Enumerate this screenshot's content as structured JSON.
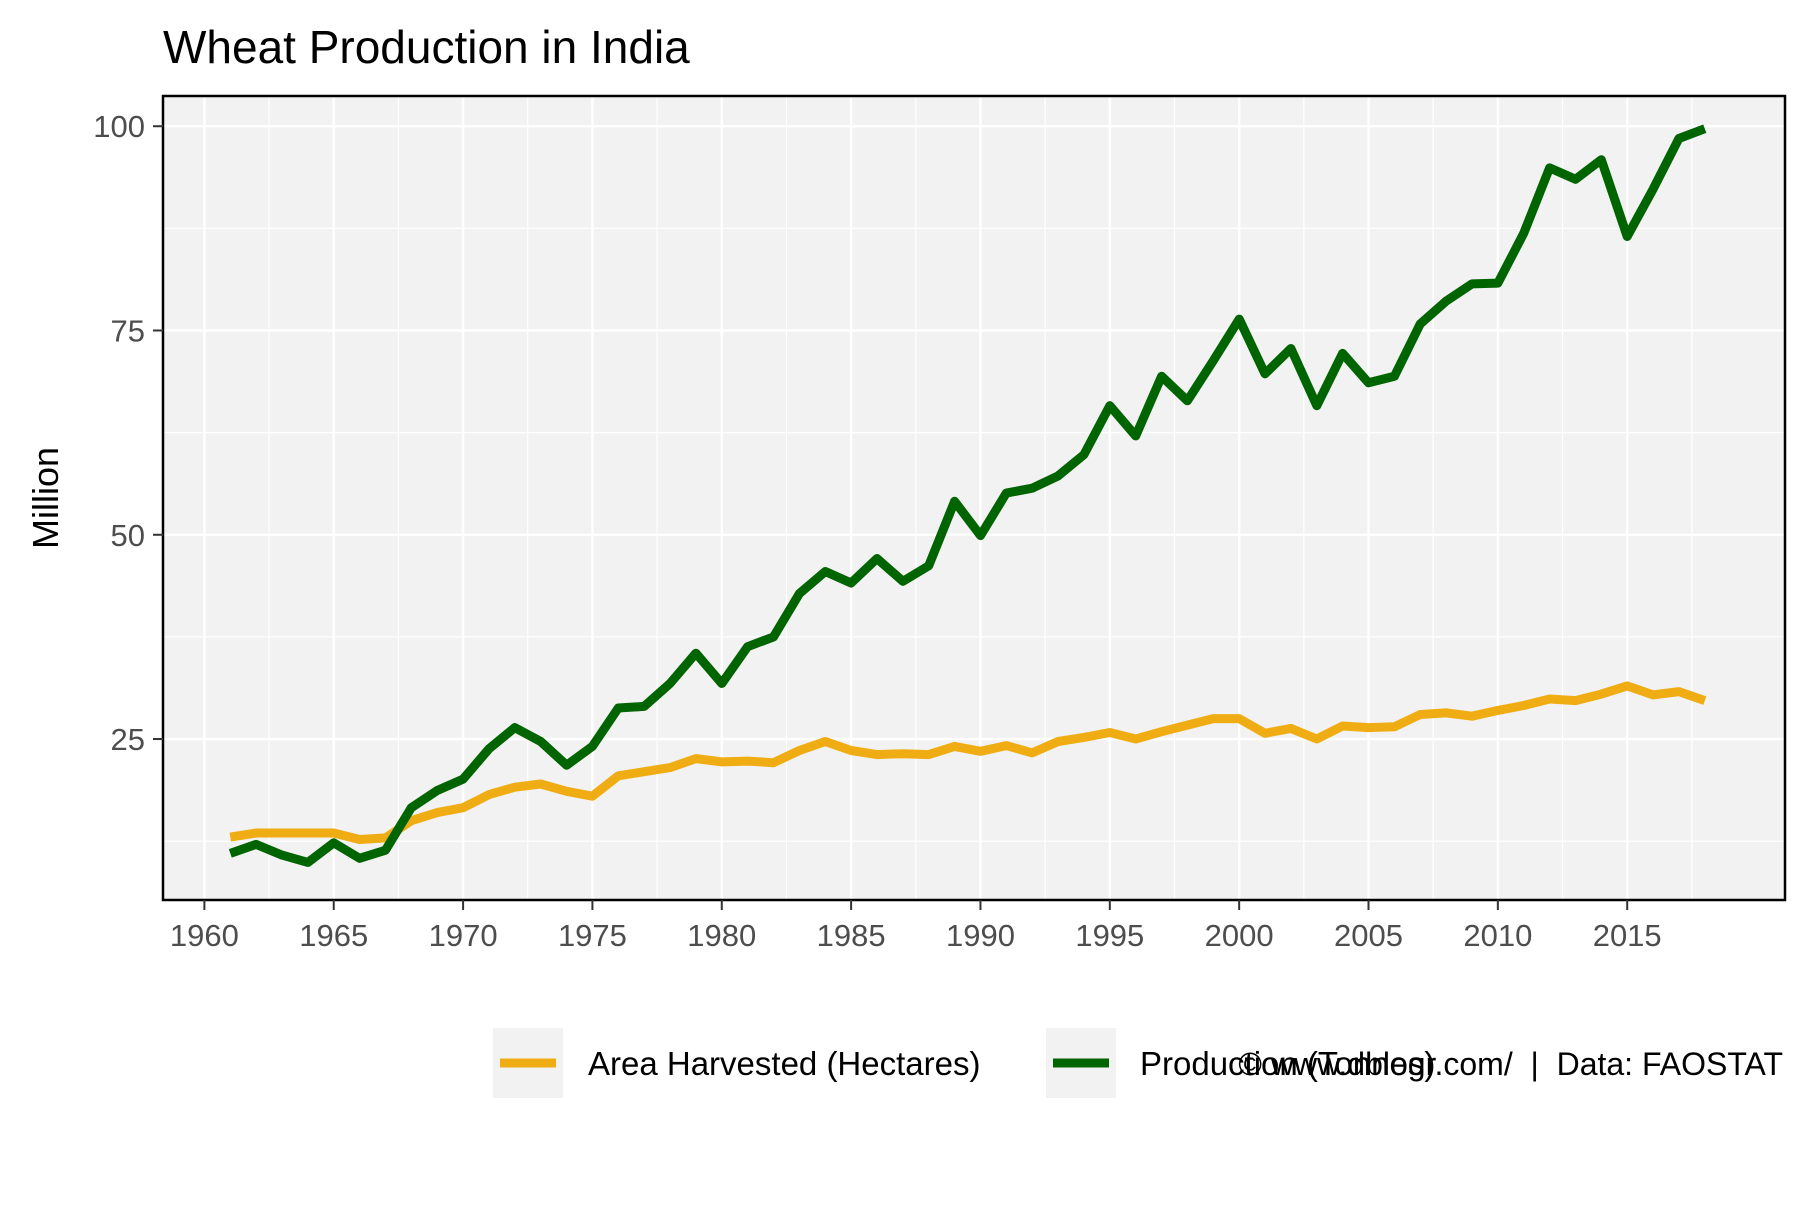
{
  "chart_data": {
    "type": "line",
    "title": "Wheat Production in India",
    "xlabel": "",
    "ylabel": "Million",
    "x_ticks": [
      1960,
      1965,
      1970,
      1975,
      1980,
      1985,
      1990,
      1995,
      2000,
      2005,
      2010,
      2015
    ],
    "y_ticks": [
      25,
      50,
      75,
      100
    ],
    "xlim": [
      1958.4,
      2021.1
    ],
    "ylim": [
      5.3,
      103.7
    ],
    "grid": true,
    "legend_position": "bottom",
    "x": [
      1961,
      1962,
      1963,
      1964,
      1965,
      1966,
      1967,
      1968,
      1969,
      1970,
      1971,
      1972,
      1973,
      1974,
      1975,
      1976,
      1977,
      1978,
      1979,
      1980,
      1981,
      1982,
      1983,
      1984,
      1985,
      1986,
      1987,
      1988,
      1989,
      1990,
      1991,
      1992,
      1993,
      1994,
      1995,
      1996,
      1997,
      1998,
      1999,
      2000,
      2001,
      2002,
      2003,
      2004,
      2005,
      2006,
      2007,
      2008,
      2009,
      2010,
      2011,
      2012,
      2013,
      2014,
      2015,
      2016,
      2017,
      2018
    ],
    "series": [
      {
        "name": "Area Harvested (Hectares)",
        "color": "#F0AD13",
        "values": [
          13.0,
          13.5,
          13.5,
          13.5,
          13.5,
          12.7,
          12.9,
          15.0,
          16.0,
          16.6,
          18.2,
          19.1,
          19.5,
          18.6,
          18.0,
          20.5,
          21.0,
          21.5,
          22.6,
          22.2,
          22.3,
          22.1,
          23.6,
          24.7,
          23.6,
          23.1,
          23.2,
          23.1,
          24.1,
          23.5,
          24.2,
          23.3,
          24.7,
          25.2,
          25.8,
          25.0,
          25.9,
          26.7,
          27.5,
          27.5,
          25.7,
          26.3,
          25.0,
          26.6,
          26.4,
          26.5,
          28.0,
          28.2,
          27.8,
          28.5,
          29.1,
          29.9,
          29.7,
          30.5,
          31.5,
          30.4,
          30.8,
          29.7
        ]
      },
      {
        "name": "Production (Tonnes)",
        "color": "#006400",
        "values": [
          11.0,
          12.1,
          10.8,
          9.9,
          12.3,
          10.4,
          11.4,
          16.6,
          18.7,
          20.1,
          23.8,
          26.4,
          24.7,
          21.8,
          24.1,
          28.8,
          29.0,
          31.8,
          35.5,
          31.8,
          36.3,
          37.5,
          42.8,
          45.5,
          44.1,
          47.1,
          44.3,
          46.2,
          54.1,
          49.9,
          55.1,
          55.7,
          57.2,
          59.8,
          65.8,
          62.1,
          69.4,
          66.4,
          71.3,
          76.4,
          69.7,
          72.8,
          65.8,
          72.2,
          68.6,
          69.4,
          75.8,
          78.6,
          80.7,
          80.8,
          86.9,
          94.9,
          93.5,
          95.9,
          86.5,
          92.3,
          98.5,
          99.7
        ]
      }
    ]
  },
  "footer": {
    "caption": "© www.dblogr.com/  |  Data: FAOSTAT"
  }
}
